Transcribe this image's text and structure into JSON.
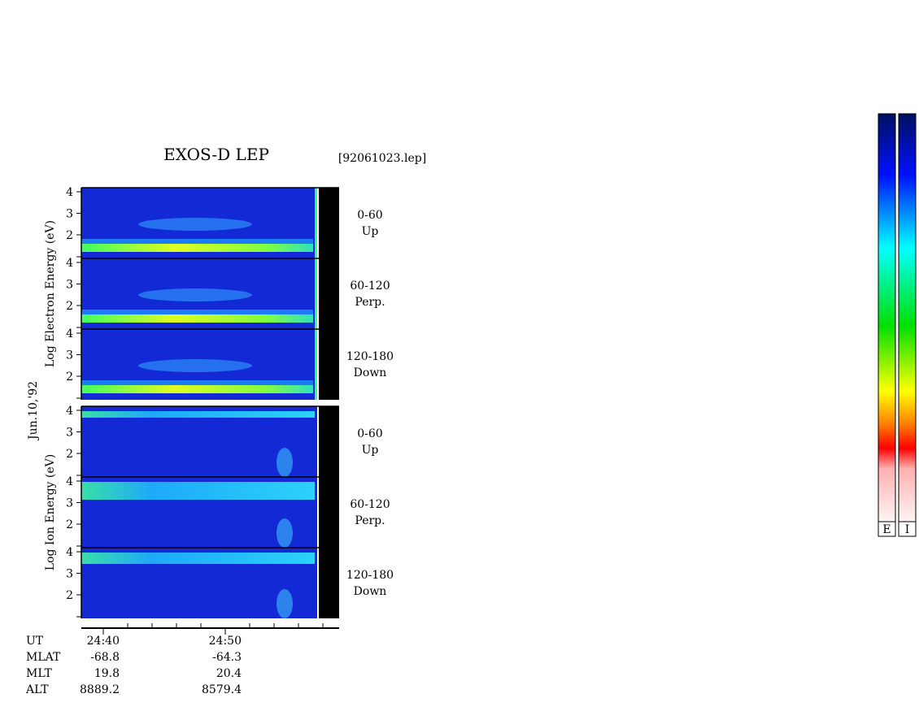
{
  "title": "EXOS-D LEP",
  "file": "[92061023.lep]",
  "date": "Jun.10,'92",
  "groups": [
    {
      "axis_label": "Log  Electron  Energy (eV)",
      "panels": [
        {
          "angle": "0-60",
          "direction": "Up",
          "yticks": [
            2,
            3,
            4
          ]
        },
        {
          "angle": "60-120",
          "direction": "Perp.",
          "yticks": [
            2,
            3,
            4
          ]
        },
        {
          "angle": "120-180",
          "direction": "Down",
          "yticks": [
            2,
            3,
            4
          ]
        }
      ]
    },
    {
      "axis_label": "Log  Ion  Energy (eV)",
      "panels": [
        {
          "angle": "0-60",
          "direction": "Up",
          "yticks": [
            2,
            3,
            4
          ]
        },
        {
          "angle": "60-120",
          "direction": "Perp.",
          "yticks": [
            2,
            3,
            4
          ]
        },
        {
          "angle": "120-180",
          "direction": "Down",
          "yticks": [
            2,
            3,
            4
          ]
        }
      ]
    }
  ],
  "footer": {
    "rows": [
      {
        "label": "UT",
        "values": [
          "24:40",
          "24:50"
        ]
      },
      {
        "label": "MLAT",
        "values": [
          "-68.8",
          "-64.3"
        ]
      },
      {
        "label": "MLT",
        "values": [
          "19.8",
          "20.4"
        ]
      },
      {
        "label": "ALT",
        "values": [
          "8889.2",
          "8579.4"
        ]
      }
    ]
  },
  "colorbar": {
    "labels": [
      "E",
      "I"
    ]
  }
}
